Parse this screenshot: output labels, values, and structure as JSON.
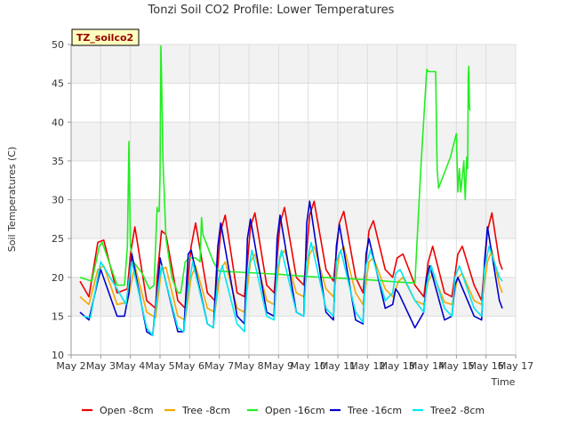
{
  "chart_data": {
    "type": "line",
    "title": "Tonzi Soil CO2 Profile: Lower Temperatures",
    "xlabel": "Time",
    "ylabel": "Soil Temperatures (C)",
    "ylim": [
      10,
      50
    ],
    "yticks": [
      10,
      15,
      20,
      25,
      30,
      35,
      40,
      45,
      50
    ],
    "xlim": [
      2,
      17
    ],
    "xticks": [
      {
        "x": 2,
        "label": "May 2"
      },
      {
        "x": 3,
        "label": "May 3"
      },
      {
        "x": 4,
        "label": "May 4"
      },
      {
        "x": 5,
        "label": "May 5"
      },
      {
        "x": 6,
        "label": "May 6"
      },
      {
        "x": 7,
        "label": "May 7"
      },
      {
        "x": 8,
        "label": "May 8"
      },
      {
        "x": 9,
        "label": "May 9"
      },
      {
        "x": 10,
        "label": "May 10"
      },
      {
        "x": 11,
        "label": "May 11"
      },
      {
        "x": 12,
        "label": "May 12"
      },
      {
        "x": 13,
        "label": "May 13"
      },
      {
        "x": 14,
        "label": "May 14"
      },
      {
        "x": 15,
        "label": "May 15"
      },
      {
        "x": 16,
        "label": "May 16"
      },
      {
        "x": 17,
        "label": "May 17"
      }
    ],
    "grid": true,
    "legend_position": "bottom",
    "annotation": "TZ_soilco2",
    "series": [
      {
        "name": "Open -8cm",
        "color": "#ee0000",
        "points": [
          [
            2.3,
            19.5
          ],
          [
            2.6,
            17.5
          ],
          [
            2.9,
            24.5
          ],
          [
            3.1,
            24.8
          ],
          [
            3.55,
            18
          ],
          [
            3.9,
            18.5
          ],
          [
            4.0,
            23
          ],
          [
            4.15,
            26.5
          ],
          [
            4.55,
            17
          ],
          [
            4.85,
            16
          ],
          [
            4.9,
            20
          ],
          [
            5.05,
            26
          ],
          [
            5.2,
            25.5
          ],
          [
            5.6,
            17
          ],
          [
            5.85,
            16
          ],
          [
            6.05,
            24
          ],
          [
            6.2,
            27
          ],
          [
            6.6,
            18
          ],
          [
            6.85,
            17
          ],
          [
            7.05,
            26
          ],
          [
            7.2,
            28
          ],
          [
            7.6,
            18
          ],
          [
            7.85,
            17.5
          ],
          [
            8.05,
            26.5
          ],
          [
            8.2,
            28.3
          ],
          [
            8.6,
            19
          ],
          [
            8.85,
            18
          ],
          [
            9.05,
            27
          ],
          [
            9.2,
            29
          ],
          [
            9.6,
            20
          ],
          [
            9.85,
            19
          ],
          [
            10.05,
            28
          ],
          [
            10.2,
            29.8
          ],
          [
            10.6,
            21
          ],
          [
            10.85,
            19.5
          ],
          [
            11.05,
            27
          ],
          [
            11.2,
            28.5
          ],
          [
            11.6,
            20
          ],
          [
            11.85,
            18
          ],
          [
            12.05,
            26
          ],
          [
            12.2,
            27.3
          ],
          [
            12.6,
            21
          ],
          [
            12.85,
            20
          ],
          [
            13.0,
            22.5
          ],
          [
            13.2,
            23
          ],
          [
            13.6,
            19
          ],
          [
            13.9,
            17.5
          ],
          [
            14.05,
            22
          ],
          [
            14.2,
            24
          ],
          [
            14.6,
            18
          ],
          [
            14.85,
            17.5
          ],
          [
            15.05,
            23
          ],
          [
            15.2,
            24
          ],
          [
            15.6,
            19
          ],
          [
            15.85,
            17
          ],
          [
            16.05,
            26
          ],
          [
            16.2,
            28.3
          ],
          [
            16.45,
            22
          ],
          [
            16.55,
            21
          ]
        ]
      },
      {
        "name": "Tree -8cm",
        "color": "#f5a800",
        "points": [
          [
            2.3,
            17.5
          ],
          [
            2.6,
            16.5
          ],
          [
            2.9,
            21
          ],
          [
            3.1,
            21.5
          ],
          [
            3.55,
            16.5
          ],
          [
            3.9,
            16.8
          ],
          [
            4.15,
            21.5
          ],
          [
            4.55,
            15.5
          ],
          [
            4.85,
            14.8
          ],
          [
            5.05,
            21
          ],
          [
            5.2,
            21.3
          ],
          [
            5.6,
            15
          ],
          [
            5.85,
            14.5
          ],
          [
            6.05,
            20
          ],
          [
            6.2,
            21.5
          ],
          [
            6.6,
            16
          ],
          [
            6.85,
            15.5
          ],
          [
            7.05,
            21
          ],
          [
            7.2,
            22
          ],
          [
            7.6,
            16
          ],
          [
            7.85,
            15.5
          ],
          [
            8.05,
            22
          ],
          [
            8.2,
            23
          ],
          [
            8.6,
            17
          ],
          [
            8.85,
            16.5
          ],
          [
            9.05,
            22.5
          ],
          [
            9.2,
            23.5
          ],
          [
            9.6,
            18
          ],
          [
            9.85,
            17.5
          ],
          [
            10.05,
            23
          ],
          [
            10.2,
            24
          ],
          [
            10.6,
            18.5
          ],
          [
            10.85,
            17.5
          ],
          [
            11.05,
            23
          ],
          [
            11.2,
            24
          ],
          [
            11.6,
            18
          ],
          [
            11.85,
            16.5
          ],
          [
            12.05,
            22
          ],
          [
            12.2,
            22.5
          ],
          [
            12.6,
            18.5
          ],
          [
            12.85,
            17.5
          ],
          [
            13.05,
            19.5
          ],
          [
            13.2,
            20
          ],
          [
            13.6,
            17
          ],
          [
            13.9,
            16.5
          ],
          [
            14.05,
            19.5
          ],
          [
            14.2,
            20.5
          ],
          [
            14.6,
            16.8
          ],
          [
            14.85,
            16.5
          ],
          [
            15.05,
            20
          ],
          [
            15.2,
            20.5
          ],
          [
            15.6,
            17
          ],
          [
            15.85,
            16.5
          ],
          [
            16.05,
            22
          ],
          [
            16.2,
            23.5
          ],
          [
            16.45,
            19
          ],
          [
            16.55,
            18
          ]
        ]
      },
      {
        "name": "Open -16cm",
        "color": "#22ee22",
        "points": [
          [
            2.3,
            20
          ],
          [
            2.7,
            19.5
          ],
          [
            2.95,
            24
          ],
          [
            3.05,
            24.5
          ],
          [
            3.55,
            19
          ],
          [
            3.8,
            19
          ],
          [
            3.9,
            24
          ],
          [
            3.95,
            37.5
          ],
          [
            4.0,
            24
          ],
          [
            4.1,
            22
          ],
          [
            4.4,
            20.5
          ],
          [
            4.65,
            18.5
          ],
          [
            4.8,
            19
          ],
          [
            4.9,
            29
          ],
          [
            4.92,
            28.5
          ],
          [
            4.97,
            28.5
          ],
          [
            5.0,
            33
          ],
          [
            5.03,
            49.8
          ],
          [
            5.06,
            44
          ],
          [
            5.1,
            35
          ],
          [
            5.2,
            25
          ],
          [
            5.4,
            20
          ],
          [
            5.6,
            18
          ],
          [
            5.7,
            18
          ],
          [
            5.85,
            22
          ],
          [
            6.0,
            22.5
          ],
          [
            6.2,
            22.5
          ],
          [
            6.35,
            22
          ],
          [
            6.4,
            27.7
          ],
          [
            6.45,
            25.5
          ],
          [
            6.8,
            22
          ],
          [
            6.95,
            21
          ],
          [
            7.0,
            20.8
          ],
          [
            8.0,
            20.6
          ],
          [
            9.0,
            20.4
          ],
          [
            10.0,
            20.1
          ],
          [
            11.0,
            19.9
          ],
          [
            12.0,
            19.7
          ],
          [
            13.0,
            19.4
          ],
          [
            13.5,
            19.3
          ],
          [
            13.6,
            19.3
          ],
          [
            13.8,
            34
          ],
          [
            14.0,
            46.8
          ],
          [
            14.05,
            46.5
          ],
          [
            14.3,
            46.5
          ],
          [
            14.35,
            34
          ],
          [
            14.4,
            31.5
          ],
          [
            14.6,
            33.5
          ],
          [
            14.8,
            35.5
          ],
          [
            15.0,
            38.5
          ],
          [
            15.05,
            31
          ],
          [
            15.1,
            34
          ],
          [
            15.15,
            31
          ],
          [
            15.25,
            35
          ],
          [
            15.3,
            30
          ],
          [
            15.35,
            35.5
          ],
          [
            15.38,
            34
          ],
          [
            15.4,
            46
          ],
          [
            15.42,
            47.2
          ],
          [
            15.44,
            42
          ],
          [
            15.46,
            41.5
          ]
        ]
      },
      {
        "name": "Tree -16cm",
        "color": "#0000cc",
        "points": [
          [
            2.3,
            15.5
          ],
          [
            2.6,
            14.5
          ],
          [
            2.9,
            19.5
          ],
          [
            3.0,
            21
          ],
          [
            3.55,
            15
          ],
          [
            3.8,
            15
          ],
          [
            3.95,
            18
          ],
          [
            4.05,
            23
          ],
          [
            4.55,
            13
          ],
          [
            4.75,
            12.5
          ],
          [
            4.95,
            20
          ],
          [
            5.0,
            22.5
          ],
          [
            5.6,
            13
          ],
          [
            5.8,
            13
          ],
          [
            5.95,
            23
          ],
          [
            6.05,
            23.5
          ],
          [
            6.6,
            14
          ],
          [
            6.8,
            13.5
          ],
          [
            6.95,
            24
          ],
          [
            7.05,
            27
          ],
          [
            7.6,
            15
          ],
          [
            7.85,
            14
          ],
          [
            7.95,
            25
          ],
          [
            8.05,
            27.5
          ],
          [
            8.6,
            15.5
          ],
          [
            8.85,
            15
          ],
          [
            8.95,
            25
          ],
          [
            9.05,
            28
          ],
          [
            9.6,
            15.5
          ],
          [
            9.85,
            15
          ],
          [
            9.95,
            27
          ],
          [
            10.05,
            29.8
          ],
          [
            10.6,
            15.5
          ],
          [
            10.85,
            14.5
          ],
          [
            10.95,
            24
          ],
          [
            11.05,
            26.8
          ],
          [
            11.6,
            14.5
          ],
          [
            11.85,
            14
          ],
          [
            11.95,
            23
          ],
          [
            12.05,
            25
          ],
          [
            12.6,
            16
          ],
          [
            12.85,
            16.5
          ],
          [
            12.95,
            18.5
          ],
          [
            13.05,
            18
          ],
          [
            13.6,
            13.5
          ],
          [
            13.9,
            15.5
          ],
          [
            14.0,
            20
          ],
          [
            14.1,
            21.5
          ],
          [
            14.6,
            14.5
          ],
          [
            14.85,
            15
          ],
          [
            14.95,
            19
          ],
          [
            15.05,
            20
          ],
          [
            15.6,
            15
          ],
          [
            15.85,
            14.5
          ],
          [
            15.95,
            22
          ],
          [
            16.05,
            26.5
          ],
          [
            16.45,
            17
          ],
          [
            16.55,
            16
          ]
        ]
      },
      {
        "name": "Tree2 -8cm",
        "color": "#00e8f0",
        "points": [
          [
            2.4,
            15
          ],
          [
            2.65,
            14.8
          ],
          [
            2.85,
            19
          ],
          [
            3.0,
            22
          ],
          [
            3.55,
            18.5
          ],
          [
            3.85,
            16.5
          ],
          [
            3.95,
            19.5
          ],
          [
            4.05,
            22
          ],
          [
            4.55,
            13.5
          ],
          [
            4.75,
            12.5
          ],
          [
            4.95,
            19
          ],
          [
            5.05,
            21.5
          ],
          [
            5.6,
            13.5
          ],
          [
            5.8,
            13
          ],
          [
            5.95,
            18.5
          ],
          [
            6.1,
            22
          ],
          [
            6.6,
            14
          ],
          [
            6.8,
            13.5
          ],
          [
            6.95,
            19.5
          ],
          [
            7.1,
            21.5
          ],
          [
            7.6,
            14
          ],
          [
            7.85,
            13
          ],
          [
            7.95,
            20
          ],
          [
            8.1,
            23.5
          ],
          [
            8.6,
            15
          ],
          [
            8.85,
            14.5
          ],
          [
            8.95,
            21
          ],
          [
            9.1,
            23.5
          ],
          [
            9.6,
            15.5
          ],
          [
            9.85,
            15
          ],
          [
            9.95,
            22
          ],
          [
            10.1,
            24.5
          ],
          [
            10.6,
            16
          ],
          [
            10.85,
            15
          ],
          [
            10.95,
            22
          ],
          [
            11.1,
            23.5
          ],
          [
            11.6,
            15.5
          ],
          [
            11.85,
            14.2
          ],
          [
            11.95,
            21.5
          ],
          [
            12.1,
            23.5
          ],
          [
            12.6,
            17
          ],
          [
            12.85,
            18
          ],
          [
            12.95,
            20.5
          ],
          [
            13.1,
            21
          ],
          [
            13.6,
            17
          ],
          [
            13.9,
            15.5
          ],
          [
            14.0,
            19
          ],
          [
            14.15,
            21.5
          ],
          [
            14.6,
            16
          ],
          [
            14.85,
            15
          ],
          [
            14.95,
            20
          ],
          [
            15.1,
            21.5
          ],
          [
            15.6,
            16
          ],
          [
            15.85,
            15
          ],
          [
            15.95,
            21
          ],
          [
            16.1,
            24
          ],
          [
            16.45,
            20
          ],
          [
            16.55,
            19.5
          ]
        ]
      }
    ]
  }
}
